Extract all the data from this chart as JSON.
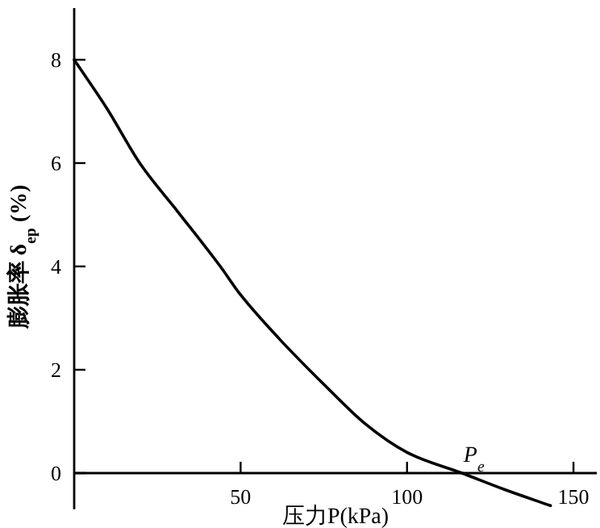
{
  "chart_data": {
    "type": "line",
    "xlabel": "压力P(kPa)",
    "ylabel": "膨胀率 δ$_{ep}$ (%)",
    "xlim": [
      0,
      157
    ],
    "ylim": [
      -0.7,
      9
    ],
    "xticks": [
      50,
      100,
      150
    ],
    "yticks": [
      0,
      2,
      4,
      6,
      8
    ],
    "grid": false,
    "marker": "none",
    "line_style": "solid",
    "annotations": [
      {
        "text": "P$_{e}$",
        "x": 116.5,
        "y": 0
      }
    ],
    "series": [
      {
        "color": "#000000",
        "x": [
          0,
          10,
          19.7,
          31,
          43.9,
          50,
          61.6,
          74.5,
          87.5,
          100,
          116.5,
          129.4,
          143.1
        ],
        "values": [
          8.0,
          7.04,
          6.0,
          5.07,
          4.0,
          3.45,
          2.6,
          1.75,
          0.95,
          0.4,
          0,
          -0.32,
          -0.63
        ]
      }
    ]
  }
}
